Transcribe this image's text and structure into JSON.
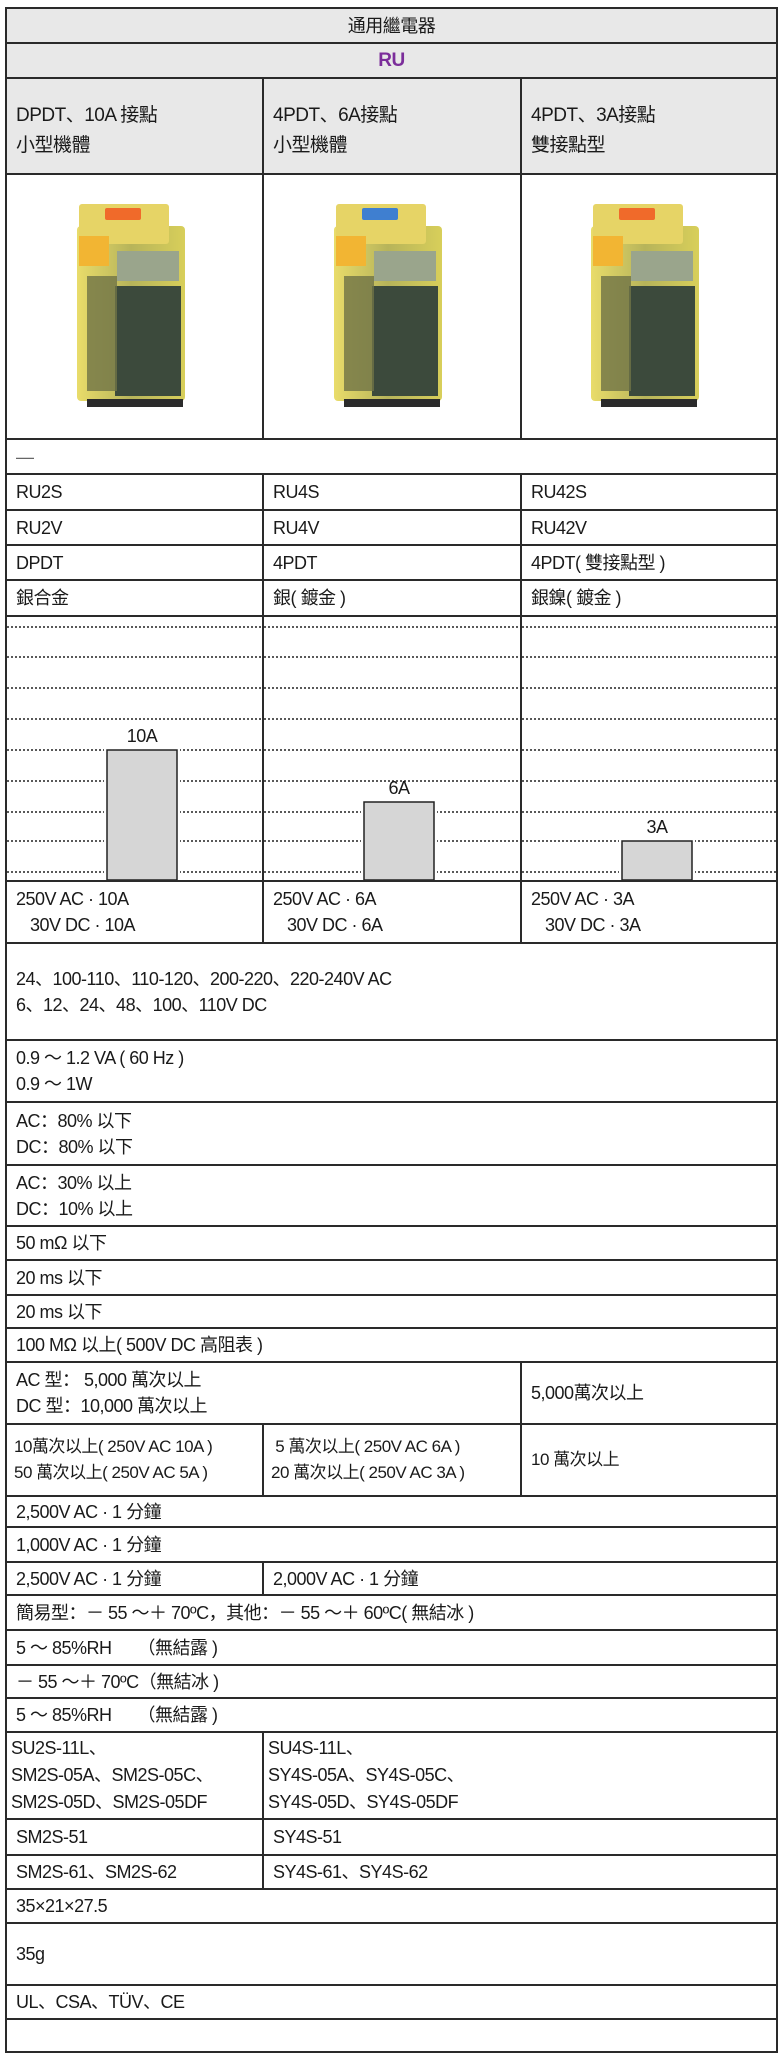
{
  "title": "通用繼電器",
  "series": "RU",
  "colors": {
    "series": "#7b2d9a",
    "header_bg": "#e8e8e8",
    "bar_fill": "#d6d6d6"
  },
  "models": [
    {
      "desc": [
        "DPDT、10A 接點",
        "小型機體"
      ],
      "indicator_color": "#f06a2a",
      "plug_in": "RU2S",
      "pcb": "RU2V",
      "contact": "DPDT",
      "material": "銀合金",
      "rating": [
        "250V AC · 10A",
        "30V DC · 10A"
      ]
    },
    {
      "desc": [
        "4PDT、6A接點",
        "小型機體"
      ],
      "indicator_color": "#3f7fd0",
      "plug_in": "RU4S",
      "pcb": "RU4V",
      "contact": "4PDT",
      "material": "銀( 鍍金 )",
      "rating": [
        "250V AC · 6A",
        "30V DC · 6A"
      ]
    },
    {
      "desc": [
        "4PDT、3A接點",
        "雙接點型"
      ],
      "indicator_color": "#f06a2a",
      "plug_in": "RU42S",
      "pcb": "RU42V",
      "contact": "4PDT( 雙接點型 )",
      "material": "銀鎳( 鍍金 )",
      "rating": [
        "250V AC · 3A",
        "30V DC · 3A"
      ]
    }
  ],
  "dash": "—",
  "chart_data": {
    "type": "bar",
    "values": [
      10,
      6,
      3
    ],
    "labels": [
      "10A",
      "6A",
      "3A"
    ],
    "grid": true
  },
  "specs": {
    "voltage": [
      "24、100-110、110-120、200-220、220-240V AC",
      "6、12、24、48、100、110V DC"
    ],
    "power": [
      "0.9 ～ 1.2 VA ( 60 Hz )",
      "0.9 ～ 1W"
    ],
    "pickup": [
      "AC：80% 以下",
      "DC：80% 以下"
    ],
    "dropout": [
      "AC：30% 以上",
      "DC：10% 以上"
    ],
    "contact_resistance": "50 mΩ 以下",
    "operate_time": "20 ms 以下",
    "release_time": "20 ms 以下",
    "insulation": "100 MΩ 以上( 500V DC 高阻表 )",
    "mech_life": [
      "AC 型：  5,000 萬次以上",
      "DC 型：10,000 萬次以上"
    ],
    "mech_life_ru42": "5,000萬次以上",
    "elec_life": [
      [
        "10萬次以上( 250V AC 10A )",
        "50 萬次以上( 250V AC 5A )"
      ],
      [
        " 5 萬次以上( 250V AC 6A )",
        "20 萬次以上( 250V AC 3A )"
      ],
      "10 萬次以上"
    ],
    "dielectric1": "2,500V AC · 1 分鐘",
    "dielectric2": "1,000V AC · 1 分鐘",
    "dielectric3": [
      "2,500V AC · 1 分鐘",
      "2,000V AC · 1 分鐘"
    ],
    "op_temp": "簡易型：－ 55 ～＋ 70ºC，其他：－ 55 ～＋ 60ºC( 無結冰 )",
    "op_humidity": "5 ～ 85%RH　　（無結露 )",
    "storage_temp": "－ 55 ～＋ 70ºC（無結冰 )",
    "storage_humidity": "5 ～ 85%RH　　（無結露 )",
    "sockets": [
      [
        "SU2S-11L、",
        "SM2S-05A、SM2S-05C、",
        "SM2S-05D、SM2S-05DF"
      ],
      [
        "SU4S-11L、",
        "SY4S-05A、SY4S-05C、",
        "SY4S-05D、SY4S-05DF"
      ]
    ],
    "socket_51": [
      "SM2S-51",
      "SY4S-51"
    ],
    "socket_61": [
      "SM2S-61、SM2S-62",
      "SY4S-61、SY4S-62"
    ],
    "dimensions": "35×21×27.5",
    "weight": "35g",
    "approvals": "UL、CSA、TÜV、CE",
    "last": ""
  }
}
